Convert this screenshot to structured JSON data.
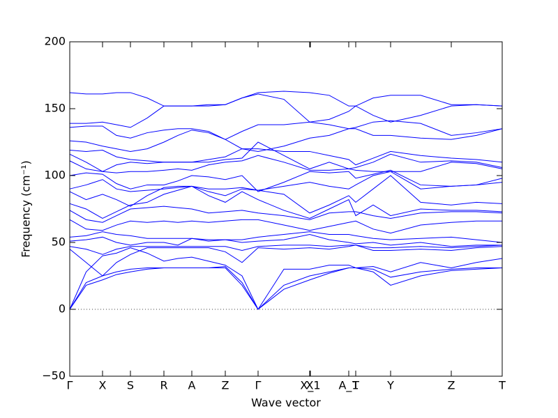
{
  "chart_data": {
    "type": "line",
    "xlabel": "Wave vector",
    "ylabel": "Frequency (cm⁻¹)",
    "x": [
      0,
      0.235,
      0.47,
      0.67,
      0.87,
      1.11,
      1.35,
      1.55,
      1.75,
      1.99,
      2.23,
      2.47,
      2.7,
      3.07,
      3.44,
      3.72,
      4.0,
      4.1,
      4.35,
      4.6,
      5.03,
      5.47,
      5.83,
      6.2
    ],
    "xlim": [
      0,
      6.2
    ],
    "xticks": [
      {
        "value": 0,
        "label": "Γ"
      },
      {
        "value": 0.47,
        "label": "X"
      },
      {
        "value": 0.87,
        "label": "S"
      },
      {
        "value": 1.35,
        "label": "R"
      },
      {
        "value": 1.75,
        "label": "A"
      },
      {
        "value": 2.23,
        "label": "Z"
      },
      {
        "value": 2.7,
        "label": "Γ"
      },
      {
        "value": 3.44,
        "label": "X"
      },
      {
        "value": 3.45,
        "label": "X_1"
      },
      {
        "value": 4.0,
        "label": "A_1"
      },
      {
        "value": 4.1,
        "label": "T"
      },
      {
        "value": 4.6,
        "label": "Y"
      },
      {
        "value": 5.47,
        "label": "Z"
      },
      {
        "value": 6.2,
        "label": "T"
      }
    ],
    "ylim": [
      -50,
      200
    ],
    "yticks": [
      {
        "value": -50,
        "label": "−50"
      },
      0,
      50,
      100,
      150,
      200
    ],
    "hlines": [
      0
    ],
    "series": [
      {
        "color": "#0000ff",
        "values": [
          0,
          18,
          22,
          26,
          28,
          30,
          31,
          31,
          31,
          31,
          31,
          18,
          0,
          15,
          22,
          27,
          31,
          31,
          28,
          18,
          25,
          29,
          30,
          31
        ]
      },
      {
        "color": "#0000ff",
        "values": [
          0,
          20,
          25,
          28,
          30,
          31,
          31,
          31,
          31,
          31,
          32,
          20,
          0,
          18,
          25,
          28,
          31,
          31,
          30,
          24,
          28,
          30,
          31,
          31
        ]
      },
      {
        "color": "#0000ff",
        "values": [
          0,
          28,
          40,
          42,
          46,
          42,
          36,
          38,
          39,
          36,
          33,
          25,
          0,
          30,
          30,
          33,
          33,
          31,
          32,
          28,
          35,
          31,
          35,
          38
        ]
      },
      {
        "color": "#0000ff",
        "values": [
          45,
          35,
          25,
          35,
          41,
          46,
          46,
          46,
          46,
          46,
          43,
          35,
          46,
          45,
          46,
          45,
          47,
          48,
          44,
          44,
          45,
          44,
          46,
          47
        ]
      },
      {
        "color": "#0000ff",
        "values": [
          47,
          45,
          41,
          45,
          47,
          47,
          47,
          47,
          47,
          47,
          47,
          44,
          47,
          48,
          48,
          47,
          48,
          48,
          46,
          46,
          47,
          46,
          47,
          48
        ]
      },
      {
        "color": "#0000ff",
        "values": [
          51,
          52,
          54,
          50,
          48,
          50,
          50,
          48,
          53,
          52,
          52,
          50,
          51,
          52,
          56,
          52,
          50,
          49,
          50,
          48,
          50,
          47,
          48,
          48
        ]
      },
      {
        "color": "#0000ff",
        "values": [
          54,
          55,
          58,
          56,
          55,
          53,
          53,
          53,
          53,
          51,
          52,
          52,
          54,
          56,
          58,
          56,
          56,
          55,
          53,
          52,
          53,
          54,
          52,
          50
        ]
      },
      {
        "color": "#0000ff",
        "values": [
          67,
          60,
          59,
          63,
          66,
          65,
          66,
          65,
          66,
          65,
          66,
          67,
          67,
          63,
          59,
          62,
          65,
          66,
          60,
          57,
          63,
          65,
          66,
          66
        ]
      },
      {
        "color": "#0000ff",
        "values": [
          74,
          67,
          65,
          70,
          75,
          76,
          77,
          76,
          75,
          72,
          73,
          74,
          72,
          70,
          67,
          72,
          73,
          73,
          70,
          68,
          72,
          73,
          73,
          72
        ]
      },
      {
        "color": "#0000ff",
        "values": [
          79,
          75,
          68,
          73,
          78,
          80,
          86,
          89,
          92,
          85,
          80,
          88,
          82,
          74,
          68,
          75,
          82,
          70,
          78,
          70,
          75,
          74,
          74,
          73
        ]
      },
      {
        "color": "#0000ff",
        "values": [
          88,
          82,
          86,
          82,
          77,
          85,
          91,
          92,
          92,
          88,
          85,
          90,
          89,
          86,
          72,
          78,
          85,
          80,
          90,
          100,
          80,
          78,
          80,
          79
        ]
      },
      {
        "color": "#0000ff",
        "values": [
          90,
          93,
          97,
          90,
          88,
          89,
          90,
          91,
          92,
          90,
          90,
          91,
          89,
          92,
          95,
          92,
          90,
          93,
          100,
          103,
          90,
          92,
          93,
          95
        ]
      },
      {
        "color": "#0000ff",
        "values": [
          100,
          102,
          101,
          94,
          90,
          93,
          93,
          96,
          100,
          99,
          97,
          100,
          88,
          95,
          103,
          102,
          103,
          98,
          101,
          104,
          93,
          92,
          93,
          98
        ]
      },
      {
        "color": "#0000ff",
        "values": [
          111,
          105,
          103,
          102,
          103,
          103,
          104,
          105,
          104,
          108,
          110,
          111,
          115,
          110,
          104,
          104,
          105,
          104,
          103,
          103,
          103,
          110,
          109,
          105
        ]
      },
      {
        "color": "#0000ff",
        "values": [
          116,
          110,
          103,
          108,
          110,
          109,
          110,
          110,
          110,
          110,
          112,
          113,
          125,
          115,
          105,
          110,
          105,
          106,
          110,
          116,
          110,
          111,
          110,
          106
        ]
      },
      {
        "color": "#0000ff",
        "values": [
          119,
          118,
          119,
          114,
          112,
          111,
          110,
          110,
          110,
          112,
          114,
          120,
          120,
          118,
          118,
          115,
          112,
          108,
          113,
          118,
          115,
          113,
          112,
          110
        ]
      },
      {
        "color": "#0000ff",
        "values": [
          126,
          125,
          122,
          120,
          118,
          120,
          125,
          130,
          134,
          132,
          127,
          120,
          118,
          122,
          128,
          130,
          135,
          135,
          130,
          130,
          128,
          127,
          130,
          135
        ]
      },
      {
        "color": "#0000ff",
        "values": [
          136,
          137,
          137,
          130,
          128,
          132,
          134,
          135,
          135,
          133,
          127,
          133,
          138,
          138,
          140,
          138,
          135,
          136,
          140,
          141,
          139,
          130,
          132,
          135
        ]
      },
      {
        "color": "#0000ff",
        "values": [
          139,
          139,
          140,
          138,
          136,
          143,
          152,
          152,
          152,
          153,
          153,
          158,
          161,
          157,
          140,
          142,
          148,
          152,
          145,
          140,
          145,
          152,
          153,
          152
        ]
      },
      {
        "color": "#0000ff",
        "values": [
          162,
          161,
          161,
          162,
          162,
          158,
          152,
          152,
          152,
          152,
          153,
          158,
          162,
          163,
          162,
          160,
          152,
          152,
          158,
          160,
          160,
          153,
          153,
          152
        ]
      }
    ]
  }
}
